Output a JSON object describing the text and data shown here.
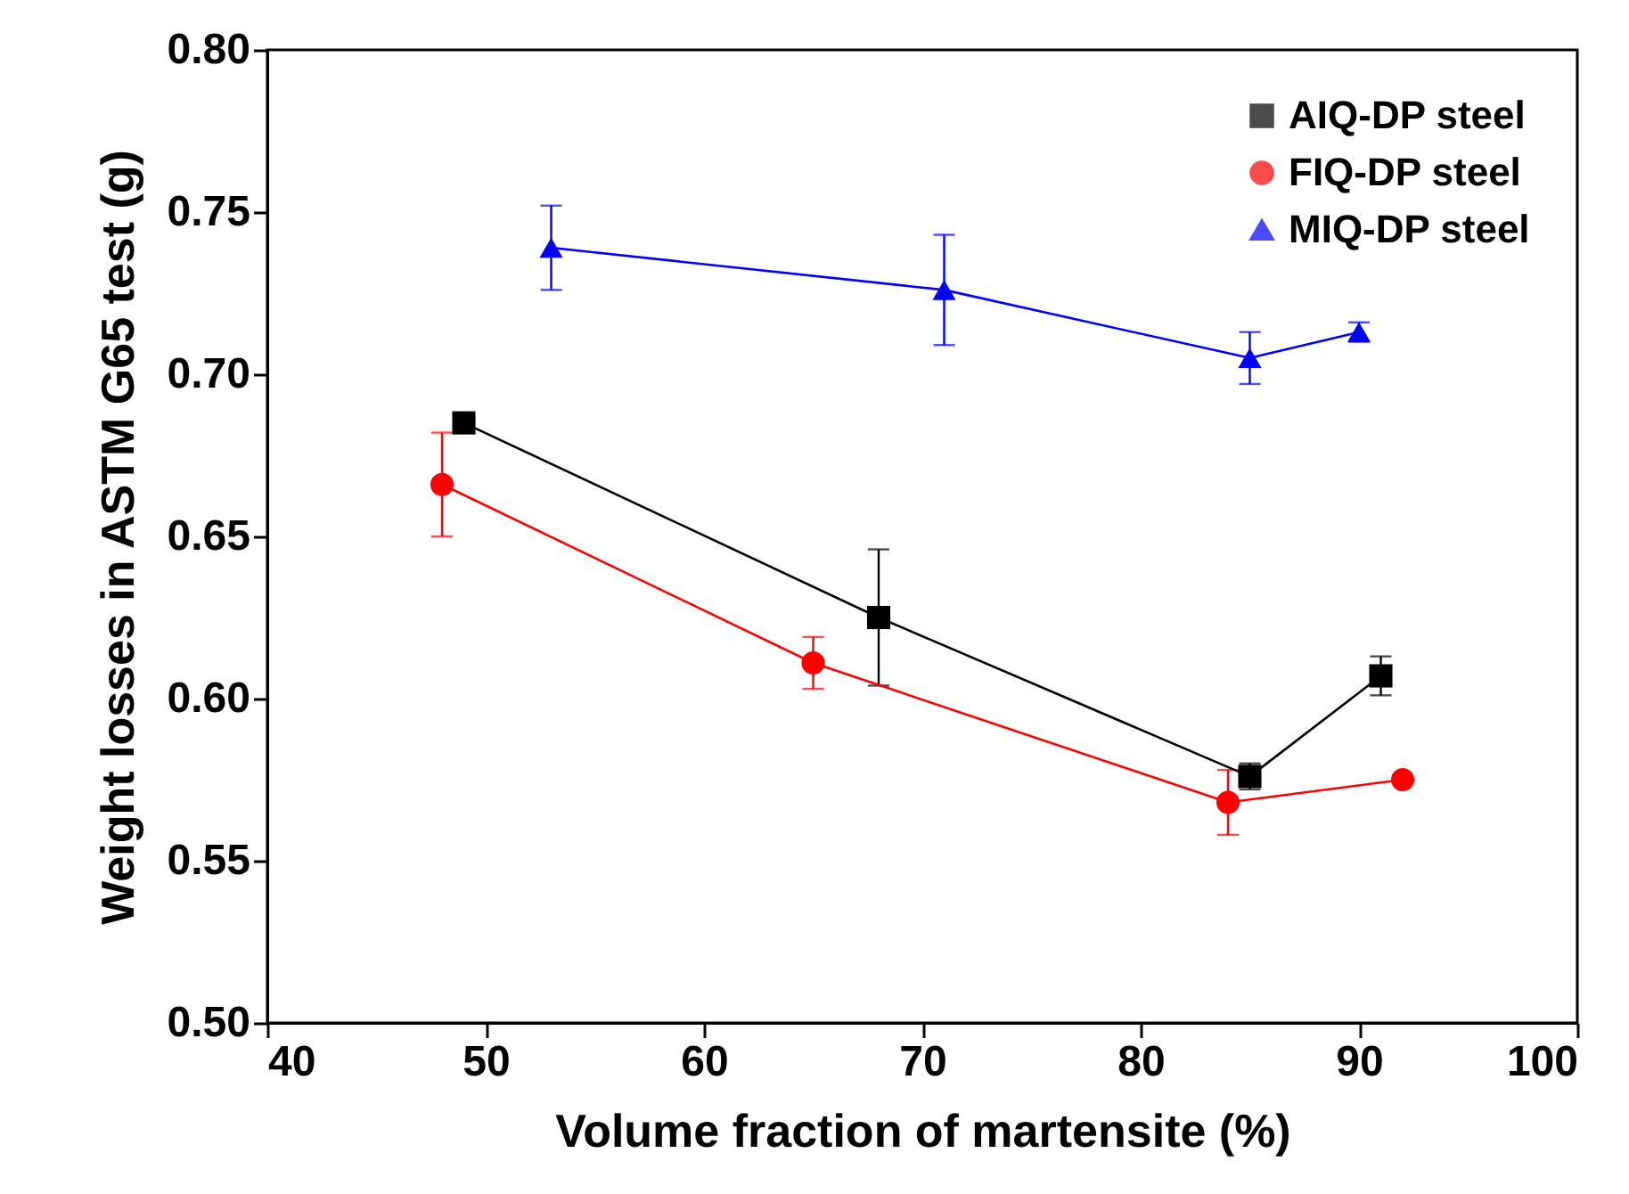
{
  "chart_data": {
    "type": "line",
    "xlabel": "Volume fraction of martensite (%)",
    "ylabel": "Weight losses in ASTM G65 test (g)",
    "xlim": [
      40,
      100
    ],
    "xticks": [
      40,
      50,
      60,
      70,
      80,
      90,
      100
    ],
    "ylim": [
      0.5,
      0.8
    ],
    "yticks": [
      {
        "value": 0.5,
        "label": "0.50"
      },
      0.55,
      {
        "value": 0.6,
        "label": "0.60"
      },
      0.65,
      {
        "value": 0.7,
        "label": "0.70"
      },
      0.75,
      {
        "value": 0.8,
        "label": "0.80"
      }
    ],
    "grid": false,
    "legend": "top right",
    "line_style": "solid",
    "series": [
      {
        "name": "AIQ-DP steel",
        "color": "#000000",
        "marker": "square",
        "x": [
          49,
          68,
          85,
          91
        ],
        "values": [
          0.685,
          0.625,
          0.576,
          0.607
        ],
        "errors": [
          0.003,
          0.021,
          0.004,
          0.006
        ]
      },
      {
        "name": "FIQ-DP steel",
        "color": "#ff0000",
        "marker": "circle",
        "x": [
          48,
          65,
          84,
          92
        ],
        "values": [
          0.666,
          0.611,
          0.568,
          0.575
        ],
        "errors": [
          0.016,
          0.008,
          0.01,
          null
        ]
      },
      {
        "name": "MIQ-DP steel",
        "color": "#0000ff",
        "marker": "triangle",
        "x": [
          53,
          71,
          85,
          90
        ],
        "values": [
          0.739,
          0.726,
          0.705,
          0.713
        ],
        "errors": [
          0.013,
          0.017,
          0.008,
          0.003
        ]
      }
    ]
  }
}
